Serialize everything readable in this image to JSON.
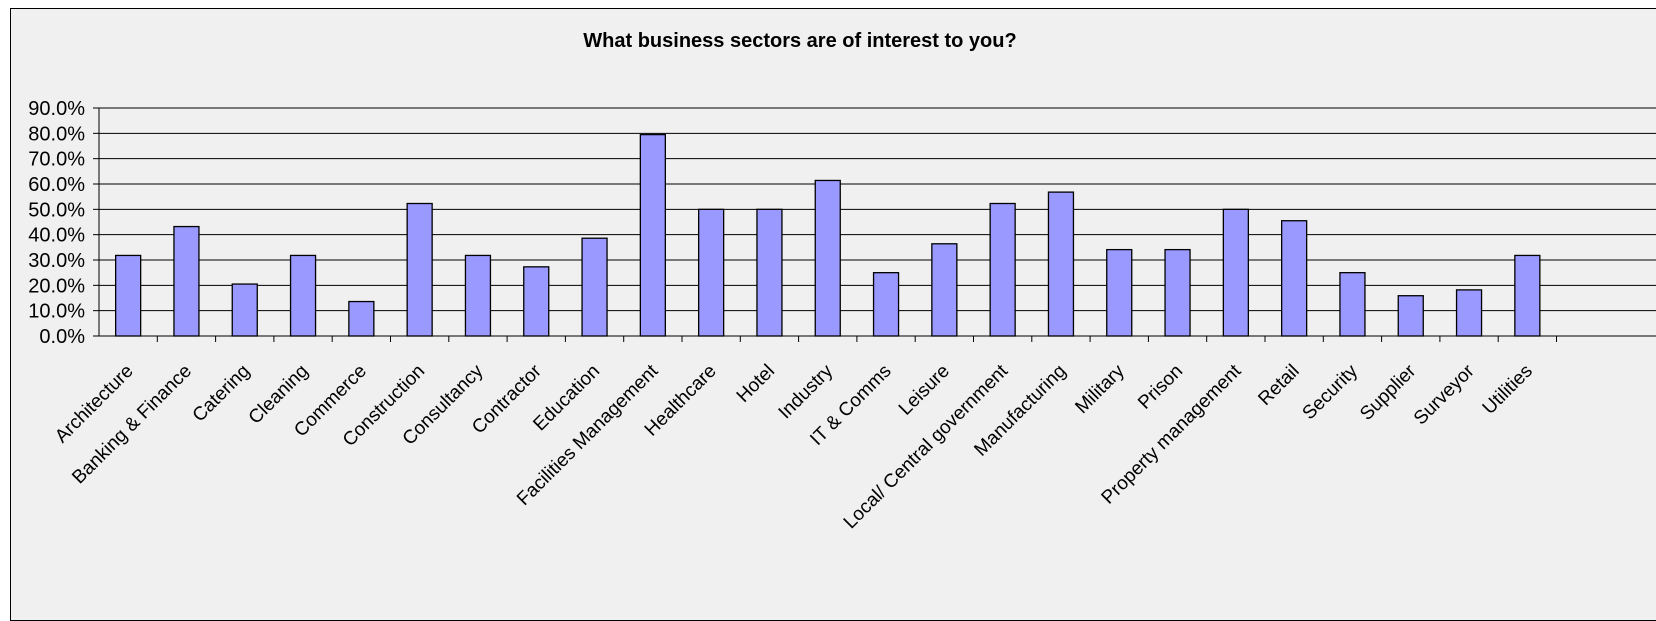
{
  "chart_data": {
    "type": "bar",
    "title": "What business sectors are of interest to you?",
    "categories": [
      "Architecture",
      "Banking & Finance",
      "Catering",
      "Cleaning",
      "Commerce",
      "Construction",
      "Consultancy",
      "Contractor",
      "Education",
      "Facilities Management",
      "Healthcare",
      "Hotel",
      "Industry",
      "IT & Comms",
      "Leisure",
      "Local/ Central government",
      "Manufacturing",
      "Military",
      "Prison",
      "Property management",
      "Retail",
      "Security",
      "Supplier",
      "Surveyor",
      "Utilities"
    ],
    "values": [
      31.8,
      43.2,
      20.5,
      31.8,
      13.6,
      52.3,
      31.8,
      27.3,
      38.6,
      79.5,
      50.0,
      50.0,
      61.4,
      25.0,
      36.4,
      52.3,
      56.8,
      34.1,
      34.1,
      50.0,
      45.5,
      25.0,
      15.9,
      18.2,
      31.8
    ],
    "ylim": [
      0,
      90
    ],
    "yticks": [
      "0.0%",
      "10.0%",
      "20.0%",
      "30.0%",
      "40.0%",
      "50.0%",
      "60.0%",
      "70.0%",
      "80.0%",
      "90.0%"
    ],
    "grid": true,
    "legend": "none",
    "bar_color": "#9999ff"
  }
}
